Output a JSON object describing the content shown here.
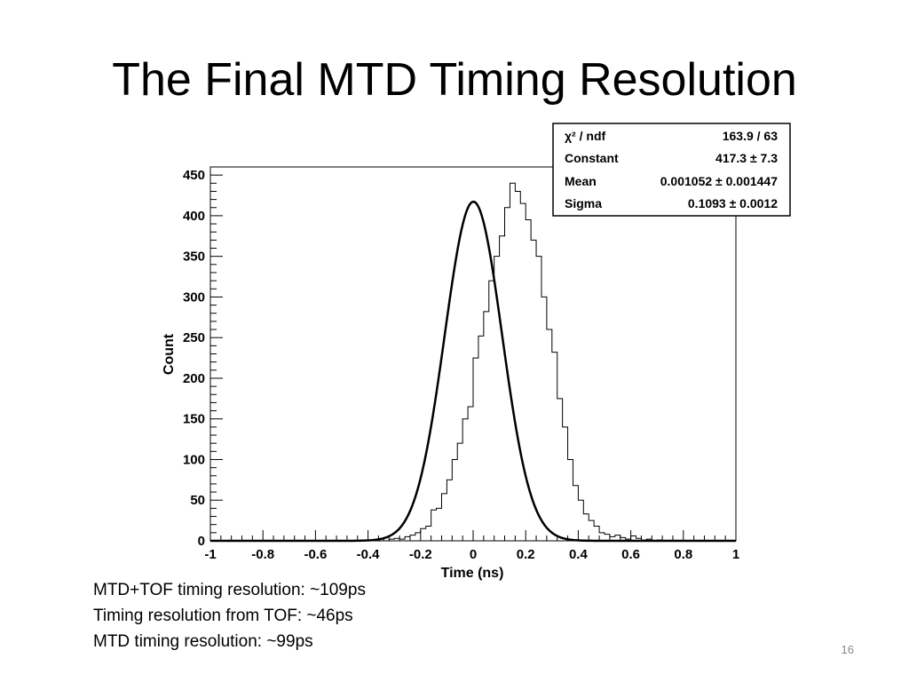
{
  "slide": {
    "title": "The Final MTD Timing Resolution",
    "page_number": "16",
    "notes": [
      "MTD+TOF timing resolution: ~109ps",
      "Timing resolution from TOF: ~46ps",
      "MTD timing resolution: ~99ps"
    ]
  },
  "stats_box": {
    "rows": [
      {
        "label": "χ² / ndf",
        "value": "163.9 / 63"
      },
      {
        "label": "Constant",
        "value": "417.3 ± 7.3"
      },
      {
        "label": "Mean",
        "value": "0.001052 ± 0.001447"
      },
      {
        "label": "Sigma",
        "value": "0.1093 ± 0.0012"
      }
    ]
  },
  "chart_data": {
    "type": "histogram",
    "xlabel": "Time (ns)",
    "ylabel": "Count",
    "xlim": [
      -1,
      1
    ],
    "ylim": [
      0,
      460
    ],
    "x_ticks": [
      -1,
      -0.8,
      -0.6,
      -0.4,
      -0.2,
      0,
      0.2,
      0.4,
      0.6,
      0.8,
      1
    ],
    "x_tick_labels": [
      "-1",
      "-0.8",
      "-0.6",
      "-0.4",
      "-0.2",
      "0",
      "0.2",
      "0.4",
      "0.6",
      "0.8",
      "1"
    ],
    "y_ticks": [
      0,
      50,
      100,
      150,
      200,
      250,
      300,
      350,
      400,
      450
    ],
    "y_tick_labels": [
      "0",
      "50",
      "100",
      "150",
      "200",
      "250",
      "300",
      "350",
      "400",
      "450"
    ],
    "bin_edges_start": -1,
    "bin_width": 0.02,
    "counts": [
      0,
      0,
      0,
      0,
      0,
      0,
      0,
      0,
      0,
      0,
      0,
      0,
      0,
      0,
      0,
      0,
      0,
      0,
      0,
      0,
      0,
      0,
      0,
      0,
      0,
      0,
      0,
      0,
      0,
      0,
      1,
      1,
      2,
      0,
      2,
      3,
      2,
      5,
      7,
      10,
      15,
      18,
      38,
      40,
      58,
      75,
      100,
      120,
      150,
      165,
      225,
      252,
      282,
      320,
      350,
      375,
      410,
      440,
      430,
      415,
      395,
      370,
      350,
      300,
      260,
      232,
      175,
      140,
      100,
      68,
      50,
      33,
      25,
      18,
      10,
      8,
      5,
      7,
      4,
      2,
      6,
      3,
      1,
      2,
      0,
      1,
      0,
      0,
      0,
      0,
      0,
      0,
      0,
      0,
      0,
      0,
      0,
      0,
      0,
      0
    ],
    "fit": {
      "type": "gaussian",
      "constant": 417.3,
      "mean": 0.001052,
      "sigma": 0.1093
    },
    "grid": false
  }
}
